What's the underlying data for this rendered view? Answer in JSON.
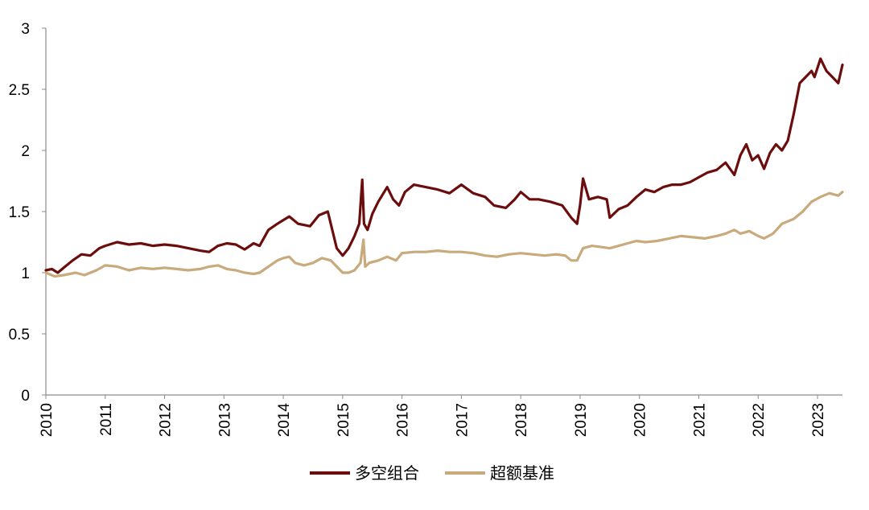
{
  "chart_data": {
    "type": "line",
    "title": "",
    "xlabel": "",
    "ylabel": "",
    "ylim": [
      0,
      3
    ],
    "xlim": [
      2010,
      2023.42
    ],
    "y_ticks": [
      "0",
      "0.5",
      "1",
      "1.5",
      "2",
      "2.5",
      "3"
    ],
    "x_ticks": [
      "2010",
      "2011",
      "2012",
      "2013",
      "2014",
      "2015",
      "2016",
      "2017",
      "2018",
      "2019",
      "2020",
      "2021",
      "2022",
      "2023"
    ],
    "grid": false,
    "legend_position": "bottom",
    "series": [
      {
        "name": "多空组合",
        "color": "#6b0d0d",
        "x": [
          2010.0,
          2010.1,
          2010.2,
          2010.3,
          2010.45,
          2010.6,
          2010.75,
          2010.9,
          2011.0,
          2011.2,
          2011.4,
          2011.6,
          2011.8,
          2012.0,
          2012.2,
          2012.4,
          2012.6,
          2012.75,
          2012.9,
          2013.05,
          2013.2,
          2013.35,
          2013.5,
          2013.6,
          2013.75,
          2013.9,
          2014.0,
          2014.1,
          2014.25,
          2014.45,
          2014.6,
          2014.75,
          2014.9,
          2015.0,
          2015.1,
          2015.2,
          2015.28,
          2015.33,
          2015.36,
          2015.42,
          2015.5,
          2015.6,
          2015.75,
          2015.85,
          2015.95,
          2016.05,
          2016.2,
          2016.4,
          2016.6,
          2016.8,
          2017.0,
          2017.2,
          2017.4,
          2017.55,
          2017.75,
          2017.9,
          2018.0,
          2018.15,
          2018.3,
          2018.5,
          2018.7,
          2018.85,
          2018.95,
          2019.0,
          2019.05,
          2019.15,
          2019.3,
          2019.45,
          2019.5,
          2019.65,
          2019.8,
          2019.95,
          2020.1,
          2020.25,
          2020.4,
          2020.55,
          2020.7,
          2020.85,
          2021.0,
          2021.15,
          2021.3,
          2021.45,
          2021.6,
          2021.7,
          2021.8,
          2021.9,
          2022.0,
          2022.1,
          2022.2,
          2022.3,
          2022.4,
          2022.5,
          2022.6,
          2022.7,
          2022.8,
          2022.9,
          2022.95,
          2023.05,
          2023.15,
          2023.25,
          2023.35,
          2023.42
        ],
        "values": [
          1.02,
          1.03,
          1.0,
          1.04,
          1.1,
          1.15,
          1.14,
          1.2,
          1.22,
          1.25,
          1.23,
          1.24,
          1.22,
          1.23,
          1.22,
          1.2,
          1.18,
          1.17,
          1.22,
          1.24,
          1.23,
          1.19,
          1.24,
          1.22,
          1.35,
          1.4,
          1.43,
          1.46,
          1.4,
          1.38,
          1.47,
          1.5,
          1.2,
          1.14,
          1.2,
          1.3,
          1.4,
          1.76,
          1.4,
          1.35,
          1.48,
          1.58,
          1.7,
          1.6,
          1.55,
          1.66,
          1.72,
          1.7,
          1.68,
          1.65,
          1.72,
          1.65,
          1.62,
          1.55,
          1.53,
          1.6,
          1.66,
          1.6,
          1.6,
          1.58,
          1.55,
          1.45,
          1.4,
          1.55,
          1.77,
          1.6,
          1.62,
          1.6,
          1.45,
          1.52,
          1.55,
          1.62,
          1.68,
          1.66,
          1.7,
          1.72,
          1.72,
          1.74,
          1.78,
          1.82,
          1.84,
          1.9,
          1.8,
          1.96,
          2.05,
          1.92,
          1.96,
          1.85,
          1.98,
          2.05,
          2.0,
          2.08,
          2.3,
          2.55,
          2.6,
          2.65,
          2.6,
          2.75,
          2.65,
          2.6,
          2.55,
          2.7
        ]
      },
      {
        "name": "超额基准",
        "color": "#c8aa7c",
        "x": [
          2010.0,
          2010.15,
          2010.3,
          2010.5,
          2010.65,
          2010.85,
          2011.0,
          2011.2,
          2011.4,
          2011.6,
          2011.8,
          2012.0,
          2012.2,
          2012.4,
          2012.6,
          2012.75,
          2012.9,
          2013.05,
          2013.2,
          2013.35,
          2013.5,
          2013.6,
          2013.75,
          2013.9,
          2014.0,
          2014.1,
          2014.2,
          2014.35,
          2014.5,
          2014.65,
          2014.8,
          2014.9,
          2015.0,
          2015.1,
          2015.2,
          2015.3,
          2015.35,
          2015.38,
          2015.45,
          2015.6,
          2015.75,
          2015.9,
          2016.0,
          2016.2,
          2016.4,
          2016.6,
          2016.8,
          2017.0,
          2017.2,
          2017.4,
          2017.6,
          2017.8,
          2018.0,
          2018.2,
          2018.4,
          2018.6,
          2018.75,
          2018.85,
          2018.95,
          2019.05,
          2019.2,
          2019.35,
          2019.5,
          2019.65,
          2019.8,
          2019.95,
          2020.1,
          2020.3,
          2020.5,
          2020.7,
          2020.9,
          2021.1,
          2021.3,
          2021.45,
          2021.6,
          2021.7,
          2021.85,
          2022.0,
          2022.1,
          2022.25,
          2022.4,
          2022.6,
          2022.75,
          2022.9,
          2023.05,
          2023.2,
          2023.35,
          2023.42
        ],
        "values": [
          1.0,
          0.97,
          0.98,
          1.0,
          0.98,
          1.02,
          1.06,
          1.05,
          1.02,
          1.04,
          1.03,
          1.04,
          1.03,
          1.02,
          1.03,
          1.05,
          1.06,
          1.03,
          1.02,
          1.0,
          0.99,
          1.0,
          1.05,
          1.1,
          1.12,
          1.13,
          1.08,
          1.06,
          1.08,
          1.12,
          1.1,
          1.05,
          1.0,
          1.0,
          1.02,
          1.08,
          1.27,
          1.05,
          1.08,
          1.1,
          1.13,
          1.1,
          1.16,
          1.17,
          1.17,
          1.18,
          1.17,
          1.17,
          1.16,
          1.14,
          1.13,
          1.15,
          1.16,
          1.15,
          1.14,
          1.15,
          1.14,
          1.1,
          1.1,
          1.2,
          1.22,
          1.21,
          1.2,
          1.22,
          1.24,
          1.26,
          1.25,
          1.26,
          1.28,
          1.3,
          1.29,
          1.28,
          1.3,
          1.32,
          1.35,
          1.32,
          1.34,
          1.3,
          1.28,
          1.32,
          1.4,
          1.44,
          1.5,
          1.58,
          1.62,
          1.65,
          1.63,
          1.66
        ]
      }
    ]
  }
}
